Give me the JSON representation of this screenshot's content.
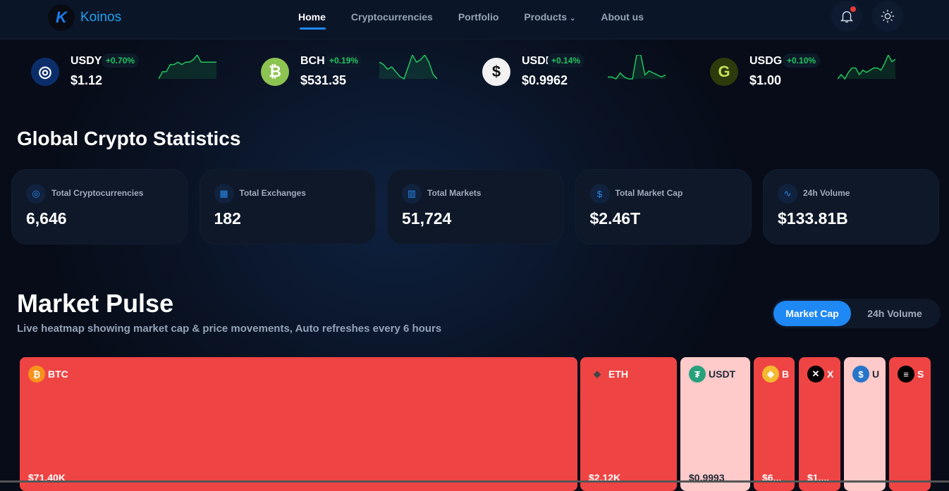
{
  "header": {
    "brand": "Koinos",
    "nav": [
      "Home",
      "Cryptocurrencies",
      "Portfolio",
      "Products",
      "About us"
    ],
    "active": "Home"
  },
  "ticker": [
    {
      "symbol": "USDY",
      "change": "+0.70%",
      "price": "$1.12",
      "color": "#0b2e6b",
      "glyph": "◎",
      "spark": [
        2,
        5,
        5,
        8,
        8,
        9,
        8,
        9,
        9,
        10,
        12,
        9,
        9,
        9,
        9,
        9
      ]
    },
    {
      "symbol": "BCH",
      "change": "+0.19%",
      "price": "$531.35",
      "color": "#8dc351",
      "glyph": "₿",
      "spark": [
        8,
        7,
        5,
        6,
        4,
        2,
        1,
        6,
        11,
        8,
        9,
        11,
        8,
        3,
        1
      ]
    },
    {
      "symbol": "USDF",
      "change": "+0.14%",
      "price": "$0.9962",
      "color": "#f1f1f1",
      "glyph": "$",
      "spark": [
        3,
        3,
        2,
        5,
        3,
        2,
        2,
        14,
        14,
        4,
        6,
        5,
        4,
        3,
        4
      ]
    },
    {
      "symbol": "USDG",
      "change": "+0.10%",
      "price": "$1.00",
      "color": "#2d3a0c",
      "glyph": "G",
      "spark": [
        1,
        3,
        1,
        4,
        6,
        6,
        3,
        5,
        4,
        5,
        6,
        6,
        5,
        8,
        12,
        9,
        10
      ]
    }
  ],
  "global_stats": {
    "title": "Global Crypto Statistics",
    "cards": [
      {
        "label": "Total Cryptocurrencies",
        "value": "6,646",
        "icon": "coins-icon"
      },
      {
        "label": "Total Exchanges",
        "value": "182",
        "icon": "building-icon"
      },
      {
        "label": "Total Markets",
        "value": "51,724",
        "icon": "bar-chart-icon"
      },
      {
        "label": "Total Market Cap",
        "value": "$2.46T",
        "icon": "dollar-icon"
      },
      {
        "label": "24h Volume",
        "value": "$133.81B",
        "icon": "activity-icon"
      }
    ]
  },
  "market_pulse": {
    "title": "Market Pulse",
    "subtitle": "Live heatmap showing market cap & price movements, Auto refreshes every 6 hours",
    "toggle": [
      "Market Cap",
      "24h Volume"
    ],
    "active": "Market Cap"
  },
  "heatmap": [
    {
      "symbol": "BTC",
      "price": "$71.40K",
      "tone": "red",
      "icon_color": "#f7931a",
      "glyph": "₿"
    },
    {
      "symbol": "ETH",
      "price": "$2.12K",
      "tone": "red",
      "icon_color": "transparent",
      "glyph": "◆"
    },
    {
      "symbol": "USDT",
      "price": "$0.9993",
      "tone": "pink",
      "icon_color": "#26a17b",
      "glyph": "₮"
    },
    {
      "symbol": "B",
      "price": "$6...",
      "tone": "red",
      "icon_color": "#f3ba2f",
      "glyph": "◈"
    },
    {
      "symbol": "X",
      "price": "$1....",
      "tone": "red",
      "icon_color": "#000000",
      "glyph": "✕"
    },
    {
      "symbol": "U",
      "price": "",
      "tone": "pink",
      "icon_color": "#2775ca",
      "glyph": "$"
    },
    {
      "symbol": "S",
      "price": "",
      "tone": "red",
      "icon_color": "#000000",
      "glyph": "≡"
    }
  ]
}
